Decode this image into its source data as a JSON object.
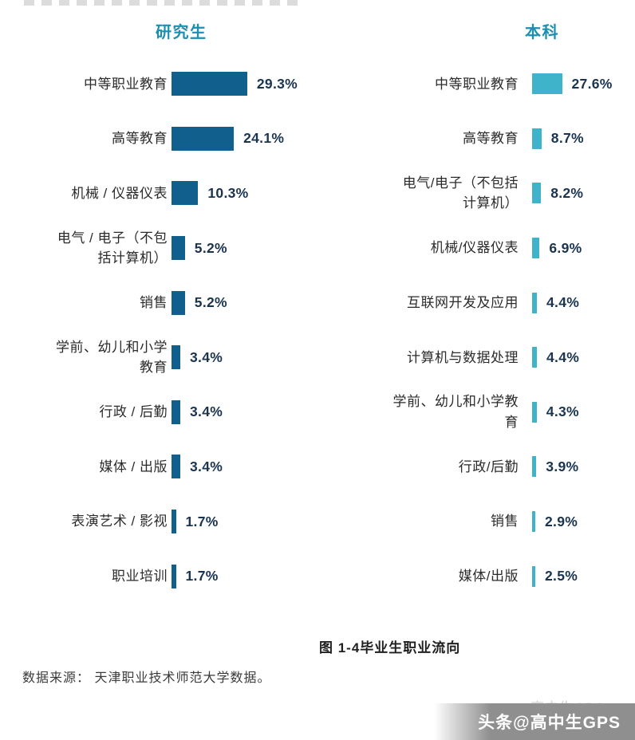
{
  "page": {
    "caption": "图 1-4毕业生职业流向",
    "source": "数据来源： 天津职业技术师范大学数据。",
    "watermark_back": "高中生GPS",
    "watermark_front": "头条@高中生GPS"
  },
  "colors": {
    "left_bar": "#115f8d",
    "right_bar": "#3fb3c9",
    "title": "#1b8fb0",
    "percent": "#1a3450"
  },
  "chart_data": [
    {
      "type": "bar",
      "orientation": "horizontal",
      "title": "研究生",
      "categories": [
        "中等职业教育",
        "高等教育",
        "机械 / 仪器仪表",
        "电气 / 电子（不包括计算机）",
        "销售",
        "学前、幼儿和小学教育",
        "行政 / 后勤",
        "媒体 / 出版",
        "表演艺术 / 影视",
        "职业培训"
      ],
      "values": [
        29.3,
        24.1,
        10.3,
        5.2,
        5.2,
        3.4,
        3.4,
        3.4,
        1.7,
        1.7
      ],
      "labels": [
        "29.3%",
        "24.1%",
        "10.3%",
        "5.2%",
        "5.2%",
        "3.4%",
        "3.4%",
        "3.4%",
        "1.7%",
        "1.7%"
      ],
      "xlim": [
        0,
        30
      ],
      "grid": false,
      "legend": false
    },
    {
      "type": "bar",
      "orientation": "horizontal",
      "title": "本科",
      "categories": [
        "中等职业教育",
        "高等教育",
        "电气/电子（不包括计算机）",
        "机械/仪器仪表",
        "互联网开发及应用",
        "计算机与数据处理",
        "学前、幼儿和小学教育",
        "行政/后勤",
        "销售",
        "媒体/出版"
      ],
      "values": [
        27.6,
        8.7,
        8.2,
        6.9,
        4.4,
        4.4,
        4.3,
        3.9,
        2.9,
        2.5
      ],
      "labels": [
        "27.6%",
        "8.7%",
        "8.2%",
        "6.9%",
        "4.4%",
        "4.4%",
        "4.3%",
        "3.9%",
        "2.9%",
        "2.5%"
      ],
      "xlim": [
        0,
        30
      ],
      "grid": false,
      "legend": false
    }
  ]
}
